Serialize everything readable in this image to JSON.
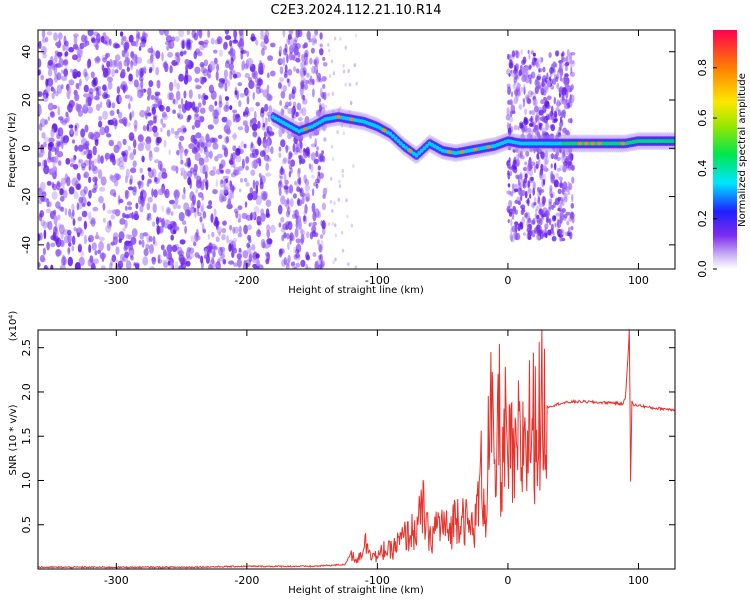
{
  "title": "C2E3.2024.112.21.10.R14",
  "chart_data": [
    {
      "type": "heatmap",
      "xlabel": "Height of straight line (km)",
      "ylabel": "Frequency (Hz)",
      "xlim": [
        -360,
        128
      ],
      "ylim": [
        -50,
        49
      ],
      "xticks": [
        -300,
        -200,
        -100,
        0,
        100
      ],
      "yticks": [
        -40,
        -20,
        0,
        20,
        40
      ],
      "colorbar": {
        "label": "Normalized spectral amplitude",
        "range": [
          0,
          0.95
        ],
        "ticks": [
          0.0,
          0.2,
          0.4,
          0.6,
          0.8
        ]
      },
      "ridge": {
        "x": [
          -180,
          -170,
          -160,
          -150,
          -140,
          -130,
          -120,
          -110,
          -100,
          -90,
          -80,
          -70,
          -60,
          -50,
          -40,
          -30,
          -20,
          -10,
          0,
          10,
          20,
          30,
          40,
          50,
          60,
          70,
          80,
          90,
          100,
          110,
          128
        ],
        "y": [
          13,
          10,
          7,
          9,
          12,
          13,
          12,
          11,
          9,
          6,
          1,
          -3,
          2,
          -1,
          -2,
          -1,
          0,
          1,
          3,
          2,
          2,
          2,
          2,
          2,
          2,
          2,
          2,
          2,
          3,
          3,
          3
        ]
      }
    },
    {
      "type": "line",
      "xlabel": "Height of straight line (km)",
      "ylabel": "SNR (10 * v/v)",
      "yunit": "(x10⁴)",
      "xlim": [
        -360,
        128
      ],
      "ylim": [
        0,
        2.7
      ],
      "xticks": [
        -300,
        -200,
        -100,
        0,
        100
      ],
      "yticks": [
        0.5,
        1.0,
        1.5,
        2.0,
        2.5
      ],
      "color": "#e8312b",
      "series": [
        {
          "x": [
            -360,
            -300,
            -250,
            -200,
            -150,
            -125,
            -120,
            -115,
            -110,
            -100,
            -95,
            -90,
            -80,
            -70,
            -65,
            -60,
            -55,
            -50,
            -45,
            -40,
            -35,
            -30,
            -25,
            -20,
            -17,
            -15,
            -12,
            -10,
            -7,
            -5,
            -2,
            0,
            3,
            5,
            8,
            10,
            13,
            15,
            17,
            20,
            25,
            30,
            40,
            50,
            60,
            70,
            80,
            88,
            90,
            92,
            93,
            94,
            95,
            96,
            100,
            110,
            128
          ],
          "y": [
            0.02,
            0.02,
            0.02,
            0.03,
            0.03,
            0.05,
            0.18,
            0.1,
            0.3,
            0.12,
            0.22,
            0.2,
            0.35,
            0.45,
            0.68,
            0.3,
            0.5,
            0.5,
            0.4,
            0.6,
            0.65,
            0.45,
            0.5,
            1.1,
            0.6,
            1.4,
            1.7,
            0.8,
            1.9,
            1.0,
            1.5,
            1.2,
            1.3,
            1.05,
            1.45,
            1.2,
            1.65,
            1.35,
            1.7,
            1.6,
            1.75,
            1.83,
            1.87,
            1.89,
            1.89,
            1.88,
            1.88,
            1.86,
            1.95,
            2.4,
            2.7,
            1.0,
            1.9,
            1.85,
            1.85,
            1.82,
            1.8
          ]
        }
      ]
    }
  ]
}
